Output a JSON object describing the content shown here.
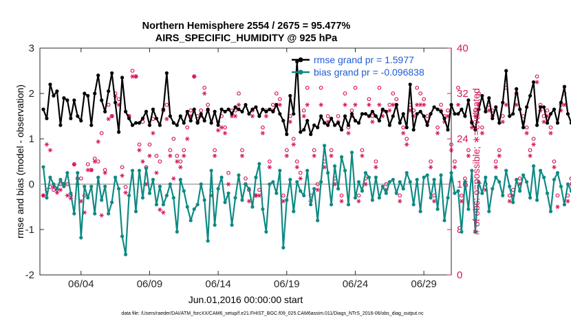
{
  "colors": {
    "rmse": "#000000",
    "bias": "#0e8a84",
    "obs": "#d6145a",
    "legend_text": "#1f5bd6",
    "zero_line": "#bdbdbd"
  },
  "chart_data": {
    "type": "line",
    "title": "Northern Hemisphere 2554 / 2675 = 95.477%",
    "subtitle": "AIRS_SPECIFIC_HUMIDITY @ 925 hPa",
    "xlabel": "Jun.01,2016 00:00:00 start",
    "ylabel_left": "rmse and bias (model - observation)",
    "ylabel_right": "# of obs: o=possible; ∗=evaluated",
    "footnote": "data file: /Users/raeder/DAI/ATM_forcXX/CAM6_setup/f.e21.FHIST_BGC.f09_025.CAM6assim.011/Diags_NTrS_2016-06/obs_diag_output.nc",
    "x_range_days": [
      0,
      30
    ],
    "ylim_left": [
      -2,
      3
    ],
    "ylim_right": [
      0,
      40
    ],
    "x_ticks": [
      {
        "day": 3,
        "label": "06/04"
      },
      {
        "day": 8,
        "label": "06/09"
      },
      {
        "day": 13,
        "label": "06/14"
      },
      {
        "day": 18,
        "label": "06/19"
      },
      {
        "day": 23,
        "label": "06/24"
      },
      {
        "day": 28,
        "label": "06/29"
      }
    ],
    "y_ticks_left": [
      {
        "value": -2,
        "label": "-2"
      },
      {
        "value": -1,
        "label": "-1"
      },
      {
        "value": 0,
        "label": "0"
      },
      {
        "value": 1,
        "label": "1"
      },
      {
        "value": 2,
        "label": "2"
      },
      {
        "value": 3,
        "label": "3"
      }
    ],
    "y_ticks_right": [
      {
        "value": 0,
        "label": "0"
      },
      {
        "value": 8,
        "label": "8"
      },
      {
        "value": 16,
        "label": "16"
      },
      {
        "value": 24,
        "label": "24"
      },
      {
        "value": 32,
        "label": "32"
      },
      {
        "value": 40,
        "label": "40"
      }
    ],
    "zero_line": 0,
    "step_days": 0.25,
    "series": [
      {
        "name": "rmse",
        "legend": "rmse grand pr = 1.5977",
        "values": [
          1.65,
          1.45,
          2.2,
          1.95,
          2.05,
          1.3,
          1.9,
          1.85,
          1.45,
          1.85,
          1.5,
          1.4,
          2.0,
          1.95,
          1.3,
          2.0,
          2.4,
          1.85,
          1.6,
          2.05,
          2.45,
          1.8,
          1.15,
          2.35,
          1.6,
          1.45,
          1.3,
          1.35,
          1.35,
          1.45,
          1.6,
          1.3,
          1.65,
          1.45,
          1.3,
          1.65,
          2.45,
          1.5,
          1.35,
          1.3,
          1.5,
          1.35,
          1.6,
          1.4,
          1.65,
          1.35,
          1.55,
          1.4,
          1.65,
          1.35,
          1.6,
          1.3,
          1.65,
          1.6,
          1.65,
          1.55,
          1.7,
          1.65,
          1.6,
          1.75,
          1.55,
          1.65,
          1.7,
          1.5,
          1.65,
          1.6,
          1.65,
          1.6,
          1.75,
          1.55,
          1.4,
          1.1,
          1.95,
          1.55,
          2.7,
          1.15,
          1.2,
          1.4,
          1.1,
          1.3,
          1.25,
          1.5,
          1.35,
          1.3,
          1.45,
          1.3,
          1.35,
          1.2,
          1.5,
          1.3,
          1.55,
          1.4,
          1.35,
          1.55,
          1.55,
          1.5,
          1.6,
          1.5,
          1.4,
          1.65,
          1.6,
          1.3,
          1.5,
          1.75,
          1.35,
          1.55,
          1.25,
          2.2,
          1.2,
          1.55,
          1.6,
          1.5,
          1.3,
          1.55,
          1.7,
          1.65,
          1.6,
          1.45,
          1.2,
          1.75,
          1.55,
          1.55,
          1.65,
          1.5,
          1.85,
          1.35,
          1.2,
          1.65,
          1.95,
          1.6,
          1.9,
          1.45,
          1.7,
          1.35,
          1.8,
          2.5,
          1.5,
          1.55,
          2.1,
          1.65,
          1.25,
          1.7,
          1.95,
          2.25,
          1.3,
          1.7,
          1.7,
          1.35,
          1.55,
          1.65,
          1.35,
          1.8,
          2.15,
          1.55,
          1.35,
          1.7,
          1.45,
          1.35,
          1.5,
          1.95,
          1.35,
          1.65,
          1.25,
          1.5,
          1.6,
          1.2,
          1.6,
          1.75,
          1.95,
          1.65,
          1.55,
          1.35,
          1.6,
          1.5,
          1.85,
          1.5,
          1.65,
          1.55,
          1.35,
          1.5,
          1.55,
          1.75,
          1.45,
          1.6,
          1.7,
          1.5,
          1.65,
          1.55,
          2.55,
          1.75,
          1.5,
          2.45,
          1.95,
          1.3,
          1.65,
          1.85,
          2.05,
          1.8,
          1.55,
          1.65,
          1.75,
          1.35,
          1.6,
          2.45,
          1.9,
          1.65,
          1.85,
          1.95,
          1.75,
          1.7
        ]
      },
      {
        "name": "bias",
        "legend": "bias grand pr = -0.096838",
        "values": [
          0.38,
          -0.3,
          0.15,
          0.0,
          -0.1,
          0.1,
          -0.05,
          0.25,
          -0.2,
          -0.65,
          0.25,
          -1.18,
          -0.05,
          -0.3,
          -0.05,
          -0.65,
          0.15,
          -0.35,
          -0.05,
          -0.65,
          -0.4,
          0.15,
          -0.1,
          -1.15,
          -1.55,
          -0.25,
          0.3,
          -0.6,
          0.3,
          -0.3,
          0.35,
          -0.2,
          0.1,
          -0.45,
          -0.05,
          -0.45,
          -0.25,
          0.0,
          -0.3,
          -1.05,
          0.1,
          -0.15,
          -0.5,
          -0.8,
          -0.55,
          -0.45,
          0.0,
          -0.35,
          -1.25,
          0.3,
          -0.9,
          -0.1,
          0.15,
          -0.4,
          -0.2,
          -0.9,
          -0.3,
          0.2,
          -0.35,
          0.0,
          -0.1,
          -0.5,
          0.15,
          0.45,
          -0.55,
          -1.05,
          0.0,
          0.05,
          -0.2,
          0.3,
          -1.4,
          -0.35,
          0.1,
          -0.6,
          0.05,
          -0.15,
          -0.25,
          0.3,
          -0.45,
          -0.1,
          -0.8,
          0.05,
          0.85,
          0.25,
          -0.45,
          0.4,
          -0.1,
          0.6,
          0.3,
          -0.45,
          0.7,
          -0.3,
          0.05,
          -0.15,
          0.25,
          0.15,
          -0.35,
          0.15,
          -0.3,
          -0.05,
          -0.2,
          0.05,
          0.1,
          -0.2,
          0.05,
          -0.1,
          0.25,
          0.05,
          -0.45,
          0.1,
          -0.6,
          0.15,
          0.2,
          -0.3,
          0.1,
          -0.55,
          0.2,
          -0.8,
          -0.3,
          0.25,
          -0.2,
          -0.15,
          -1.05,
          0.05,
          -0.55,
          0.3,
          -1.05,
          0.05,
          -0.2,
          0.15,
          -0.6,
          -0.1,
          0.15,
          0.05,
          -0.25,
          0.3,
          -0.05,
          -0.4,
          0.1,
          -0.15,
          0.2,
          0.05,
          -0.3,
          0.4,
          -0.35,
          0.3,
          0.15,
          -0.2,
          -0.6,
          0.1,
          0.25,
          -0.05,
          -0.45,
          0.0,
          -0.15,
          0.3,
          -0.35,
          0.1,
          0.35,
          -0.25,
          -0.1,
          -0.35,
          0.05,
          -0.7,
          -0.3,
          0.2,
          -0.1,
          -0.45,
          -0.2,
          -0.6,
          0.0,
          0.45,
          -0.05,
          -0.4,
          -0.2,
          0.0,
          -0.25,
          -0.85,
          0.0,
          -0.35,
          -0.1,
          -0.55,
          -0.3,
          0.35,
          -0.45,
          -0.2,
          0.0,
          -0.5,
          0.15,
          0.35,
          -0.65,
          0.0,
          0.4,
          0.15,
          -0.35,
          0.5,
          -0.45,
          0.25,
          0.05,
          0.0,
          0.15,
          0.1,
          -0.35,
          0.3,
          0.05,
          0.15,
          0.1
        ]
      },
      {
        "name": "obs_possible",
        "marker": "circle",
        "values": [
          14,
          15,
          15.5,
          15,
          15,
          16,
          16,
          16,
          14,
          19.5,
          17,
          17,
          14,
          19.5,
          18.5,
          20.5,
          20,
          25,
          18.5,
          30,
          28,
          32,
          31,
          19,
          15.5,
          28,
          36,
          35,
          23,
          27,
          19,
          23,
          27.5,
          21,
          20,
          29,
          30,
          22,
          24,
          21,
          20,
          22,
          26,
          29,
          35,
          28,
          29,
          33,
          30,
          15,
          22,
          27,
          28,
          26,
          18,
          29,
          29,
          32,
          22,
          17,
          15,
          29,
          14,
          15,
          26,
          29,
          20,
          30,
          32,
          31,
          14,
          22,
          28,
          24,
          20,
          18,
          29,
          33,
          14,
          22,
          16,
          33,
          20,
          28,
          22,
          17,
          28,
          14,
          32,
          26,
          29,
          33,
          14,
          22,
          17,
          31,
          28,
          20,
          33,
          29,
          16,
          30,
          32,
          31,
          14,
          26,
          24,
          30,
          29,
          33,
          32,
          31,
          28,
          20,
          14,
          26,
          30,
          28,
          29,
          23,
          20,
          33,
          14,
          17,
          22,
          27,
          29,
          32,
          26,
          16,
          30,
          29,
          20,
          22,
          28,
          33,
          14,
          15,
          32,
          17,
          28,
          26,
          22,
          24,
          35,
          30,
          28,
          29,
          26,
          20,
          14,
          30,
          32,
          14,
          17,
          22,
          28,
          22,
          30,
          18,
          26,
          24,
          30,
          32,
          33,
          14,
          22,
          20,
          28,
          30,
          29,
          26,
          18,
          28,
          14,
          22,
          30,
          32,
          33,
          14,
          20,
          28,
          22,
          18,
          30,
          24,
          14,
          32,
          29,
          33,
          26,
          28,
          22,
          30,
          14,
          32,
          35,
          33,
          29,
          26,
          15,
          20,
          29,
          32
        ]
      },
      {
        "name": "obs_evaluated",
        "marker": "asterisk",
        "values": [
          14,
          23,
          22,
          15.5,
          14.5,
          15,
          16,
          14,
          13.5,
          19.5,
          16,
          13,
          11,
          18.5,
          18.5,
          20,
          23.5,
          10.5,
          18,
          27.5,
          28,
          31.5,
          30,
          17.5,
          14.5,
          28,
          35,
          35,
          22,
          20,
          16,
          21,
          25,
          18,
          11.5,
          11,
          27.5,
          21,
          17,
          20,
          19,
          21,
          24,
          28,
          35,
          27,
          28,
          32,
          29,
          14,
          21,
          25.5,
          26,
          25,
          16,
          28,
          28,
          30,
          21,
          16,
          13,
          28,
          14,
          14,
          25,
          28,
          19,
          29,
          30,
          30,
          13,
          21,
          27,
          23,
          19,
          17,
          28,
          30,
          13,
          21,
          15,
          30,
          19,
          27,
          21,
          16,
          27,
          13,
          30,
          25,
          28,
          30,
          13,
          21,
          16,
          30,
          27,
          19,
          30,
          28,
          15,
          29,
          30,
          30,
          13,
          25,
          23,
          29,
          28,
          30,
          30,
          30,
          27,
          19,
          13,
          25,
          29,
          27,
          28,
          22,
          19,
          30,
          13,
          16,
          21,
          26,
          28,
          30,
          25,
          15,
          29,
          28,
          19,
          21,
          27,
          30,
          13,
          14,
          30,
          16,
          27,
          25,
          21,
          23,
          34,
          29,
          27,
          28,
          25,
          19,
          12,
          29,
          30,
          13,
          16,
          21,
          27,
          21,
          29,
          17,
          25,
          23,
          29,
          30,
          30,
          13,
          21,
          19,
          27,
          29,
          28,
          25,
          17,
          27,
          13,
          21,
          29,
          30,
          30,
          13,
          19,
          27,
          21,
          17,
          29,
          23,
          13,
          30,
          28,
          30,
          25,
          27,
          21,
          29,
          13,
          30,
          34,
          30,
          28,
          25,
          3,
          19,
          28,
          30
        ]
      }
    ]
  }
}
